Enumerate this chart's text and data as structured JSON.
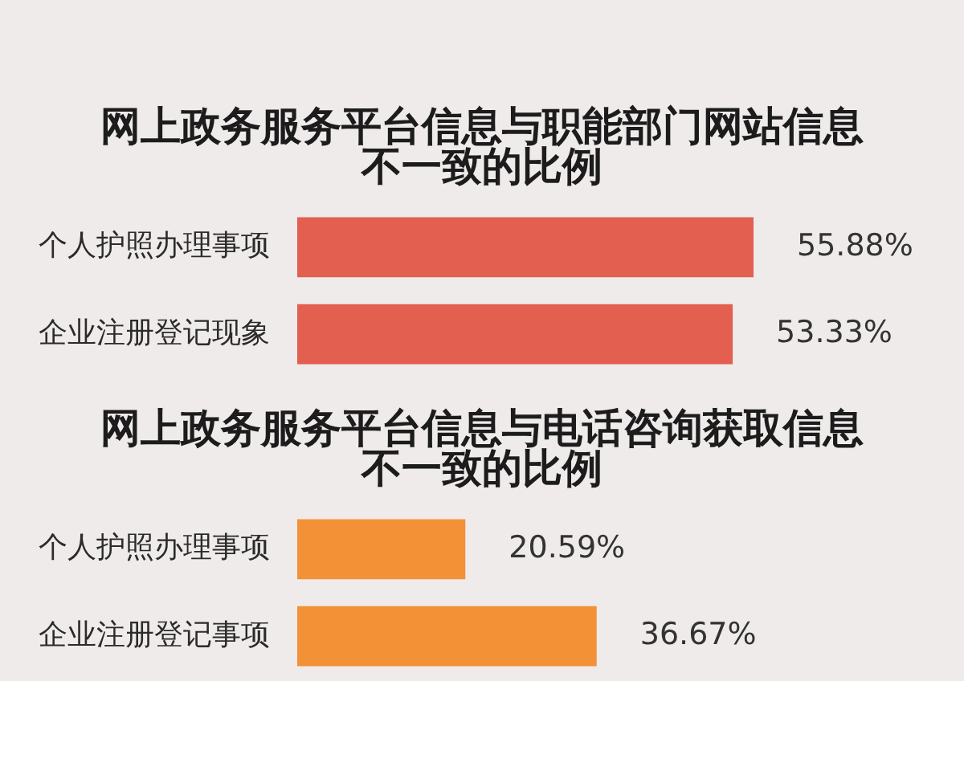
{
  "chart_data": [
    {
      "type": "bar",
      "orientation": "horizontal",
      "title": "网上政务服务平台信息与职能部门网站信息不一致的比例",
      "categories": [
        "个人护照办理事项",
        "企业注册登记现象"
      ],
      "values": [
        55.88,
        53.33
      ],
      "value_labels": [
        "55.88%",
        "53.33%"
      ],
      "color": "#e35f4f"
    },
    {
      "type": "bar",
      "orientation": "horizontal",
      "title": "网上政务服务平台信息与电话咨询获取信息不一致的比例",
      "categories": [
        "个人护照办理事项",
        "企业注册登记事项"
      ],
      "values": [
        20.59,
        36.67
      ],
      "value_labels": [
        "20.59%",
        "36.67%"
      ],
      "color": "#f39137"
    }
  ]
}
